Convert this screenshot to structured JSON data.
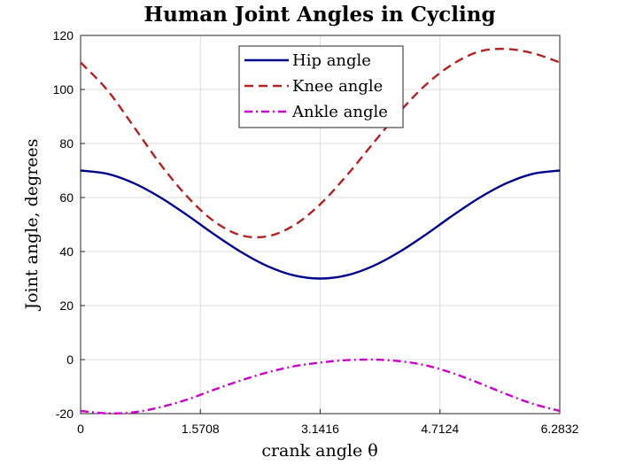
{
  "chart_data": {
    "type": "line",
    "title": "Human Joint Angles in Cycling",
    "xlabel": "crank angle θ",
    "ylabel": "Joint angle, degrees",
    "xlim": [
      0,
      6.2832
    ],
    "ylim": [
      -20,
      120
    ],
    "xticks": [
      0,
      1.5708,
      3.1416,
      4.7124,
      6.2832
    ],
    "xtick_labels": [
      "0",
      "1.5708",
      "3.1416",
      "4.7124",
      "6.2832"
    ],
    "yticks": [
      -20,
      0,
      20,
      40,
      60,
      80,
      100,
      120
    ],
    "ytick_labels": [
      "-20",
      "0",
      "20",
      "40",
      "60",
      "80",
      "100",
      "120"
    ],
    "grid": true,
    "legend_position": "top-center",
    "x": [
      0,
      0.3491,
      0.6981,
      1.0472,
      1.3963,
      1.7453,
      2.0944,
      2.4435,
      2.7925,
      3.1416,
      3.4907,
      3.8397,
      4.1888,
      4.5379,
      4.8869,
      5.236,
      5.5851,
      5.9341,
      6.2832
    ],
    "series": [
      {
        "name": "Hip angle",
        "color": "#00008b",
        "dash": "solid",
        "values": [
          70,
          68.8,
          65.3,
          60,
          53.5,
          46.5,
          40,
          34.7,
          31.2,
          30,
          31.2,
          34.7,
          40,
          46.5,
          53.5,
          60,
          65.3,
          68.8,
          70
        ]
      },
      {
        "name": "Knee angle",
        "color": "#b22222",
        "dash": "dashed",
        "values": [
          110,
          99.8,
          86.2,
          72.3,
          60.4,
          51.3,
          46.1,
          45.6,
          49.6,
          57.5,
          68.2,
          80.2,
          91.9,
          102,
          109.5,
          114.1,
          115,
          113.4,
          110
        ]
      },
      {
        "name": "Ankle angle",
        "color": "#cc00cc",
        "dash": "dashdot",
        "values": [
          -19,
          -19.9,
          -19.5,
          -17.6,
          -14.8,
          -11.2,
          -7.8,
          -4.8,
          -2.5,
          -1.1,
          -0.2,
          0,
          -0.6,
          -2.2,
          -5.1,
          -8.8,
          -12.8,
          -16.4,
          -19
        ]
      }
    ]
  }
}
